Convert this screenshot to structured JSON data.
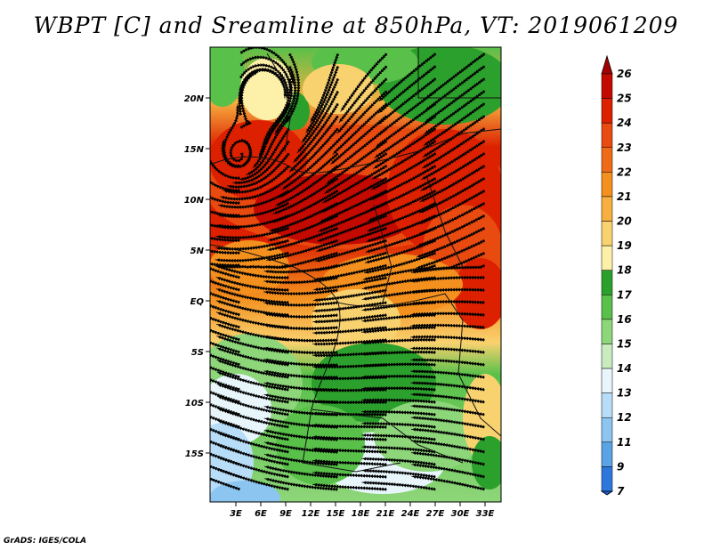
{
  "title": "WBPT [C] and Sreamline at 850hPa, VT: 2019061209",
  "footer": "GrADS: IGES/COLA",
  "map": {
    "lat_labels": [
      "20N",
      "15N",
      "10N",
      "5N",
      "EQ",
      "5S",
      "10S",
      "15S"
    ],
    "lon_labels": [
      "3E",
      "6E",
      "9E",
      "12E",
      "15E",
      "18E",
      "21E",
      "24E",
      "27E",
      "30E",
      "33E"
    ]
  },
  "colorbar": {
    "labels": [
      "26",
      "25",
      "24",
      "23",
      "22",
      "21",
      "20",
      "19",
      "18",
      "17",
      "16",
      "15",
      "14",
      "13",
      "12",
      "11",
      "9",
      "7"
    ],
    "colors": [
      "#a50000",
      "#c40a00",
      "#dc2000",
      "#e84a10",
      "#ef6b18",
      "#f3901e",
      "#f7b040",
      "#f9d270",
      "#fdf0a8",
      "#2ca02c",
      "#59c04a",
      "#8ed67a",
      "#c8ecc0",
      "#e8f6fc",
      "#b8ddf8",
      "#8cc6f0",
      "#5aa4e6",
      "#2c78dc",
      "#1a5cd2"
    ]
  },
  "colors": {
    "warm_core": "#dc2000",
    "cool_south": "#8ed67a",
    "streamline": "#000000"
  }
}
